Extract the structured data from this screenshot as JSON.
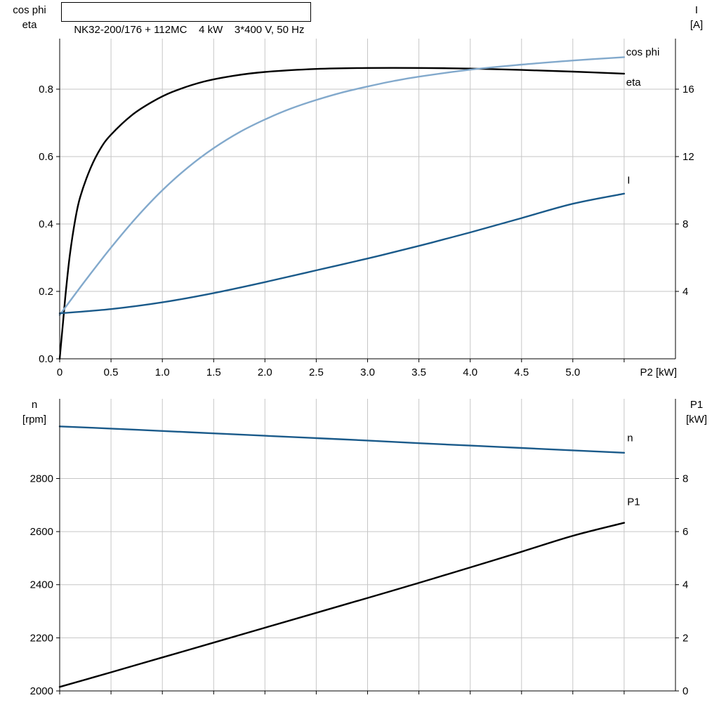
{
  "title_box": {
    "text": "NK32-200/176 + 112MC    4 kW    3*400 V, 50 Hz"
  },
  "corner_labels": {
    "top_left": {
      "line1": "cos phi",
      "line2": "eta"
    },
    "top_right": {
      "line1": "I",
      "line2": "[A]"
    },
    "bottom_left": {
      "line1": "n",
      "line2": "[rpm]"
    },
    "bottom_right": {
      "line1": "P1",
      "line2": "[kW]"
    }
  },
  "colors": {
    "black": "#000000",
    "dark_blue": "#1a5a8a",
    "light_blue": "#82a9cc",
    "blue_label": "#4377a5",
    "grid": "#c6c6c6",
    "axis": "#000000",
    "background": "#ffffff"
  },
  "chart_data": [
    {
      "id": "top",
      "type": "line",
      "title": "NK32-200/176 + 112MC  4 kW  3*400 V, 50 Hz",
      "x_axis": {
        "label": "P2 [kW]",
        "min": 0,
        "max": 6,
        "ticks": [
          0,
          0.5,
          1,
          1.5,
          2,
          2.5,
          3,
          3.5,
          4,
          4.5,
          5
        ],
        "tick_labels": [
          "0",
          "0.5",
          "1.0",
          "1.5",
          "2.0",
          "2.5",
          "3.0",
          "3.5",
          "4.0",
          "4.5",
          "5.0"
        ],
        "grid_ticks": [
          0.5,
          1,
          1.5,
          2,
          2.5,
          3,
          3.5,
          4,
          4.5,
          5,
          5.5
        ]
      },
      "y_left_axis": {
        "label": "cos phi / eta",
        "min": 0,
        "max": 0.95,
        "ticks": [
          0,
          0.2,
          0.4,
          0.6,
          0.8
        ],
        "tick_labels": [
          "0.0",
          "0.2",
          "0.4",
          "0.6",
          "0.8"
        ],
        "grid_ticks": [
          0.2,
          0.4,
          0.6,
          0.8
        ]
      },
      "y_right_axis": {
        "label": "I [A]",
        "min": 0,
        "max": 19,
        "ticks": [
          4,
          8,
          12,
          16
        ],
        "tick_labels": [
          "4",
          "8",
          "12",
          "16"
        ]
      },
      "series": [
        {
          "id": "eta",
          "name": "eta",
          "axis": "left",
          "color_key": "black",
          "label": {
            "text": "eta",
            "x": 5.52,
            "y": 0.81,
            "color_key": "black"
          },
          "points": [
            [
              0,
              0
            ],
            [
              0.03,
              0.1
            ],
            [
              0.06,
              0.2
            ],
            [
              0.1,
              0.31
            ],
            [
              0.15,
              0.41
            ],
            [
              0.2,
              0.48
            ],
            [
              0.3,
              0.565
            ],
            [
              0.4,
              0.625
            ],
            [
              0.5,
              0.665
            ],
            [
              0.7,
              0.722
            ],
            [
              0.9,
              0.762
            ],
            [
              1.1,
              0.792
            ],
            [
              1.4,
              0.822
            ],
            [
              1.7,
              0.84
            ],
            [
              2,
              0.851
            ],
            [
              2.5,
              0.86
            ],
            [
              3,
              0.863
            ],
            [
              3.5,
              0.863
            ],
            [
              4,
              0.861
            ],
            [
              4.5,
              0.857
            ],
            [
              5,
              0.852
            ],
            [
              5.5,
              0.846
            ]
          ]
        },
        {
          "id": "cos_phi",
          "name": "cos phi",
          "axis": "left",
          "color_key": "light_blue",
          "label": {
            "text": "cos phi",
            "x": 5.52,
            "y": 0.9,
            "color_key": "light_blue"
          },
          "points": [
            [
              0,
              0.13
            ],
            [
              0.25,
              0.232
            ],
            [
              0.5,
              0.33
            ],
            [
              0.75,
              0.42
            ],
            [
              1,
              0.5
            ],
            [
              1.25,
              0.568
            ],
            [
              1.5,
              0.625
            ],
            [
              1.75,
              0.672
            ],
            [
              2,
              0.71
            ],
            [
              2.25,
              0.742
            ],
            [
              2.5,
              0.768
            ],
            [
              2.75,
              0.79
            ],
            [
              3,
              0.808
            ],
            [
              3.25,
              0.824
            ],
            [
              3.5,
              0.837
            ],
            [
              4,
              0.858
            ],
            [
              4.5,
              0.873
            ],
            [
              5,
              0.885
            ],
            [
              5.5,
              0.895
            ]
          ]
        },
        {
          "id": "I",
          "name": "I",
          "axis": "right",
          "color_key": "dark_blue",
          "label": {
            "text": "I",
            "x": 5.53,
            "y": 10.4,
            "color_key": "blue_label"
          },
          "points": [
            [
              0,
              2.7
            ],
            [
              0.5,
              2.95
            ],
            [
              1,
              3.35
            ],
            [
              1.5,
              3.9
            ],
            [
              2,
              4.55
            ],
            [
              2.5,
              5.25
            ],
            [
              3,
              5.95
            ],
            [
              3.5,
              6.7
            ],
            [
              4,
              7.5
            ],
            [
              4.5,
              8.35
            ],
            [
              5,
              9.2
            ],
            [
              5.5,
              9.8
            ]
          ]
        }
      ]
    },
    {
      "id": "bottom",
      "type": "line",
      "title": "",
      "x_axis": {
        "label": "",
        "min": 0,
        "max": 6,
        "ticks": [
          0,
          0.5,
          1,
          1.5,
          2,
          2.5,
          3,
          3.5,
          4,
          4.5,
          5
        ],
        "tick_labels": [],
        "grid_ticks": [
          0.5,
          1,
          1.5,
          2,
          2.5,
          3,
          3.5,
          4,
          4.5,
          5,
          5.5
        ]
      },
      "y_left_axis": {
        "label": "n [rpm]",
        "min": 2000,
        "max": 3100,
        "ticks": [
          2000,
          2200,
          2400,
          2600,
          2800
        ],
        "tick_labels": [
          "2000",
          "2200",
          "2400",
          "2600",
          "2800"
        ],
        "grid_ticks": [
          2200,
          2400,
          2600,
          2800
        ]
      },
      "y_right_axis": {
        "label": "P1 [kW]",
        "min": 0,
        "max": 11,
        "ticks": [
          0,
          2,
          4,
          6,
          8
        ],
        "tick_labels": [
          "0",
          "2",
          "4",
          "6",
          "8"
        ]
      },
      "series": [
        {
          "id": "n",
          "name": "n",
          "axis": "left",
          "color_key": "dark_blue",
          "label": {
            "text": "n",
            "x": 5.53,
            "y": 2940,
            "color_key": "blue_label"
          },
          "points": [
            [
              0,
              2996
            ],
            [
              0.5,
              2988
            ],
            [
              1,
              2979
            ],
            [
              1.5,
              2970
            ],
            [
              2,
              2961
            ],
            [
              2.5,
              2952
            ],
            [
              3,
              2943
            ],
            [
              3.5,
              2933
            ],
            [
              4,
              2924
            ],
            [
              4.5,
              2915
            ],
            [
              5,
              2906
            ],
            [
              5.5,
              2897
            ]
          ]
        },
        {
          "id": "P1",
          "name": "P1",
          "axis": "right",
          "color_key": "black",
          "label": {
            "text": "P1",
            "x": 5.53,
            "y": 7.0,
            "color_key": "black"
          },
          "points": [
            [
              0,
              0.15
            ],
            [
              0.5,
              0.7
            ],
            [
              1,
              1.26
            ],
            [
              1.5,
              1.82
            ],
            [
              2,
              2.38
            ],
            [
              2.5,
              2.94
            ],
            [
              3,
              3.5
            ],
            [
              3.5,
              4.07
            ],
            [
              4,
              4.65
            ],
            [
              4.5,
              5.24
            ],
            [
              5,
              5.84
            ],
            [
              5.5,
              6.33
            ]
          ]
        }
      ]
    }
  ]
}
